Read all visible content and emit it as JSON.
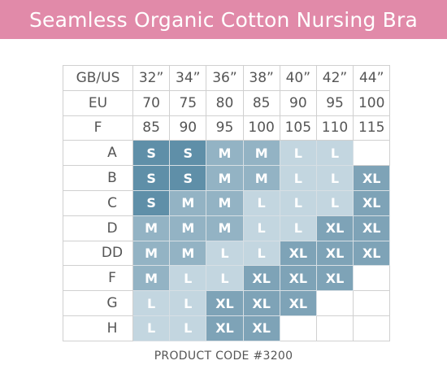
{
  "header": {
    "title": "Seamless Organic Cotton Nursing Bra"
  },
  "size_chart": {
    "band_rows": [
      {
        "label": "GB/US",
        "values": [
          "32”",
          "34”",
          "36”",
          "38”",
          "40”",
          "42”",
          "44”"
        ]
      },
      {
        "label": "EU",
        "values": [
          "70",
          "75",
          "80",
          "85",
          "90",
          "95",
          "100"
        ]
      },
      {
        "label": "F",
        "values": [
          "85",
          "90",
          "95",
          "100",
          "105",
          "110",
          "115"
        ]
      }
    ],
    "cup_rows": [
      {
        "cup": "A",
        "sizes": [
          "S",
          "S",
          "M",
          "M",
          "L",
          "L",
          ""
        ]
      },
      {
        "cup": "B",
        "sizes": [
          "S",
          "S",
          "M",
          "M",
          "L",
          "L",
          "XL"
        ]
      },
      {
        "cup": "C",
        "sizes": [
          "S",
          "M",
          "M",
          "L",
          "L",
          "L",
          "XL"
        ]
      },
      {
        "cup": "D",
        "sizes": [
          "M",
          "M",
          "M",
          "L",
          "L",
          "XL",
          "XL"
        ]
      },
      {
        "cup": "DD",
        "sizes": [
          "M",
          "M",
          "L",
          "L",
          "XL",
          "XL",
          "XL"
        ]
      },
      {
        "cup": "F",
        "sizes": [
          "M",
          "L",
          "L",
          "XL",
          "XL",
          "XL",
          ""
        ]
      },
      {
        "cup": "G",
        "sizes": [
          "L",
          "L",
          "XL",
          "XL",
          "XL",
          "",
          ""
        ]
      },
      {
        "cup": "H",
        "sizes": [
          "L",
          "L",
          "XL",
          "XL",
          "",
          "",
          ""
        ]
      }
    ]
  },
  "footer": {
    "product_code": "PRODUCT CODE #3200"
  },
  "colors": {
    "banner": "#e18aa9",
    "size_S": "#5f8fa8",
    "size_M": "#93b3c4",
    "size_L": "#c3d6e0",
    "size_XL": "#7ea3b7"
  }
}
